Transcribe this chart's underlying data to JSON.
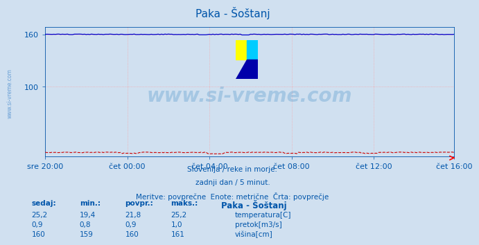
{
  "title": "Paka - Šoštanj",
  "bg_color": "#d0e0f0",
  "grid_color": "#ff9999",
  "x_tick_labels": [
    "sre 20:00",
    "čet 00:00",
    "čet 04:00",
    "čet 08:00",
    "čet 12:00",
    "čet 16:00"
  ],
  "x_tick_positions": [
    0,
    48,
    96,
    144,
    192,
    239
  ],
  "y_ticks": [
    100,
    160
  ],
  "ylim": [
    20,
    168
  ],
  "n_points": 240,
  "temp_color": "#cc0000",
  "flow_color": "#008800",
  "height_color": "#0000cc",
  "watermark_text": "www.si-vreme.com",
  "watermark_color": "#5599cc",
  "subtitle1": "Slovenija / reke in morje.",
  "subtitle2": "zadnji dan / 5 minut.",
  "subtitle3": "Meritve: povprečne  Enote: metrične  Črta: povprečje",
  "text_color": "#0055aa",
  "table_header": [
    "sedaj:",
    "min.:",
    "povpr.:",
    "maks.:",
    "Paka - Šoštanj"
  ],
  "table_rows": [
    [
      "25,2",
      "19,4",
      "21,8",
      "25,2",
      "temperatura[C]"
    ],
    [
      "0,9",
      "0,8",
      "0,9",
      "1,0",
      "pretok[m3/s]"
    ],
    [
      "160",
      "159",
      "160",
      "161",
      "višina[cm]"
    ]
  ],
  "row_colors": [
    "#cc0000",
    "#008800",
    "#0000cc"
  ],
  "tick_fontsize": 8,
  "title_fontsize": 11
}
